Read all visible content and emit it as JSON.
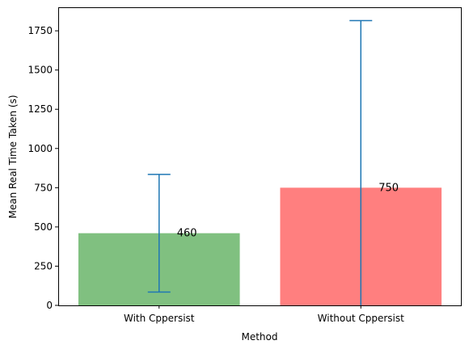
{
  "chart_data": {
    "type": "bar",
    "title": "",
    "xlabel": "Method",
    "ylabel": "Mean Real Time Taken (s)",
    "categories": [
      "With Cppersist",
      "Without Cppersist"
    ],
    "values": [
      460,
      750
    ],
    "error_bars": [
      {
        "lower": 85,
        "upper": 835
      },
      {
        "lower": 0,
        "upper": 1815
      }
    ],
    "data_labels": [
      "460",
      "750"
    ],
    "bar_colors": [
      "#80c080",
      "#ff7f7f"
    ],
    "error_bar_color": "#1f77b4",
    "ylim": [
      0,
      1900
    ],
    "yticks": [
      0,
      250,
      500,
      750,
      1000,
      1250,
      1500,
      1750
    ],
    "ytick_labels": [
      "0",
      "250",
      "500",
      "750",
      "1000",
      "1250",
      "1500",
      "1750"
    ],
    "grid": false,
    "legend": "none"
  }
}
